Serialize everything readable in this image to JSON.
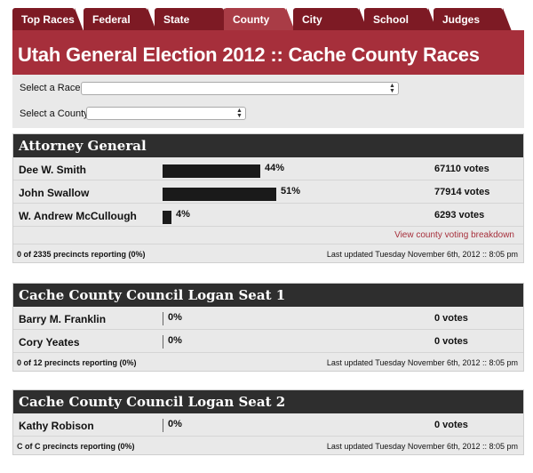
{
  "tabs": [
    {
      "label": "Top Races"
    },
    {
      "label": "Federal"
    },
    {
      "label": "State"
    },
    {
      "label": "County"
    },
    {
      "label": "City"
    },
    {
      "label": "School"
    },
    {
      "label": "Judges"
    }
  ],
  "header": {
    "title": "Utah General Election 2012 :: Cache County Races"
  },
  "controls": {
    "race_label": "Select a Race:",
    "race_value": "",
    "county_label": "Select a County:",
    "county_value": ""
  },
  "races": [
    {
      "title": "Attorney General",
      "candidates": [
        {
          "name": "Dee W. Smith",
          "pct": "44%",
          "pct_value": 0.44,
          "votes": "67110 votes"
        },
        {
          "name": "John Swallow",
          "pct": "51%",
          "pct_value": 0.51,
          "votes": "77914 votes"
        },
        {
          "name": "W. Andrew McCullough",
          "pct": "4%",
          "pct_value": 0.04,
          "votes": "6293 votes"
        }
      ],
      "link": "View county voting breakdown",
      "precincts": "0 of 2335 precincts reporting (0%)",
      "updated": "Last updated Tuesday November 6th, 2012 :: 8:05 pm"
    },
    {
      "title": "Cache County Council Logan Seat 1",
      "candidates": [
        {
          "name": "Barry M. Franklin",
          "pct": "0%",
          "pct_value": 0,
          "votes": "0 votes"
        },
        {
          "name": "Cory Yeates",
          "pct": "0%",
          "pct_value": 0,
          "votes": "0 votes"
        }
      ],
      "precincts": "0 of 12 precincts reporting (0%)",
      "updated": "Last updated Tuesday November 6th, 2012 :: 8:05 pm"
    },
    {
      "title": "Cache County Council Logan Seat 2",
      "candidates": [
        {
          "name": "Kathy Robison",
          "pct": "0%",
          "pct_value": 0,
          "votes": "0 votes"
        }
      ],
      "precincts": "C of C precincts reporting (0%)",
      "updated": "Last updated Tuesday November 6th, 2012 :: 8:05 pm"
    }
  ],
  "colors": {
    "tab": "#7d1a24",
    "tab_active": "#a93c46",
    "banner": "#a62f3b",
    "race_header": "#2e2e2e",
    "link": "#a62f3b"
  }
}
